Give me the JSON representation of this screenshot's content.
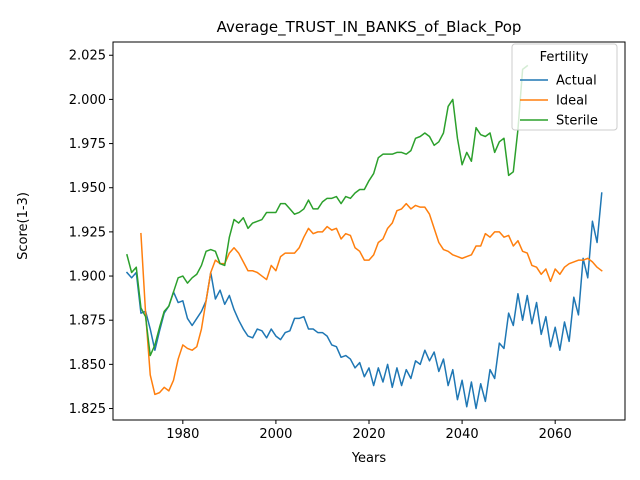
{
  "chart_data": {
    "type": "line",
    "title": "Average_TRUST_IN_BANKS_of_Black_Pop",
    "xlabel": "Years",
    "ylabel": "Score(1-3)",
    "xlim": [
      1965,
      2075
    ],
    "ylim": [
      1.8185,
      2.0325
    ],
    "xticks": [
      1980,
      2000,
      2020,
      2040,
      2060
    ],
    "xtick_labels": [
      "1980",
      "2000",
      "2020",
      "2040",
      "2060"
    ],
    "yticks": [
      1.825,
      1.85,
      1.875,
      1.9,
      1.925,
      1.95,
      1.975,
      2.0,
      2.025
    ],
    "ytick_labels": [
      "1.825",
      "1.850",
      "1.875",
      "1.900",
      "1.925",
      "1.950",
      "1.975",
      "2.000",
      "2.025"
    ],
    "grid": false,
    "legend": {
      "title": "Fertility",
      "position": "top-right"
    },
    "series": [
      {
        "name": "Actual",
        "color": "#1f77b4",
        "x": [
          1968,
          1969,
          1970,
          1971,
          1972,
          1973,
          1974,
          1975,
          1976,
          1977,
          1978,
          1979,
          1980,
          1981,
          1982,
          1983,
          1984,
          1985,
          1986,
          1987,
          1988,
          1989,
          1990,
          1991,
          1992,
          1993,
          1994,
          1995,
          1996,
          1997,
          1998,
          1999,
          2000,
          2001,
          2002,
          2003,
          2004,
          2005,
          2006,
          2007,
          2008,
          2009,
          2010,
          2011,
          2012,
          2013,
          2014,
          2015,
          2016,
          2017,
          2018,
          2019,
          2020,
          2021,
          2022,
          2023,
          2024,
          2025,
          2026,
          2027,
          2028,
          2029,
          2030,
          2031,
          2032,
          2033,
          2034,
          2035,
          2036,
          2037,
          2038,
          2039,
          2040,
          2041,
          2042,
          2043,
          2044,
          2045,
          2046,
          2047,
          2048,
          2049,
          2050,
          2051,
          2052,
          2053,
          2054,
          2055,
          2056,
          2057,
          2058,
          2059,
          2060,
          2061,
          2062,
          2063,
          2064,
          2065,
          2066,
          2067,
          2068,
          2069,
          2070
        ],
        "y": [
          1.902,
          1.899,
          1.902,
          1.879,
          1.88,
          1.87,
          1.858,
          1.869,
          1.879,
          1.883,
          1.891,
          1.885,
          1.886,
          1.876,
          1.872,
          1.876,
          1.88,
          1.886,
          1.902,
          1.887,
          1.892,
          1.884,
          1.889,
          1.881,
          1.875,
          1.87,
          1.866,
          1.865,
          1.87,
          1.869,
          1.865,
          1.87,
          1.866,
          1.864,
          1.868,
          1.869,
          1.876,
          1.876,
          1.877,
          1.87,
          1.87,
          1.868,
          1.868,
          1.866,
          1.861,
          1.86,
          1.854,
          1.855,
          1.853,
          1.848,
          1.851,
          1.843,
          1.848,
          1.838,
          1.848,
          1.84,
          1.85,
          1.837,
          1.848,
          1.838,
          1.847,
          1.842,
          1.852,
          1.85,
          1.858,
          1.852,
          1.857,
          1.846,
          1.853,
          1.838,
          1.847,
          1.83,
          1.841,
          1.826,
          1.84,
          1.825,
          1.839,
          1.829,
          1.847,
          1.842,
          1.862,
          1.859,
          1.879,
          1.872,
          1.89,
          1.875,
          1.889,
          1.873,
          1.885,
          1.867,
          1.877,
          1.86,
          1.871,
          1.858,
          1.874,
          1.863,
          1.888,
          1.878,
          1.91,
          1.899,
          1.931,
          1.919,
          1.947
        ]
      },
      {
        "name": "Ideal",
        "color": "#ff7f0e",
        "x": [
          1971,
          1972,
          1973,
          1974,
          1975,
          1976,
          1977,
          1978,
          1979,
          1980,
          1981,
          1982,
          1983,
          1984,
          1985,
          1986,
          1987,
          1988,
          1989,
          1990,
          1991,
          1992,
          1993,
          1994,
          1995,
          1996,
          1997,
          1998,
          1999,
          2000,
          2001,
          2002,
          2003,
          2004,
          2005,
          2006,
          2007,
          2008,
          2009,
          2010,
          2011,
          2012,
          2013,
          2014,
          2015,
          2016,
          2017,
          2018,
          2019,
          2020,
          2021,
          2022,
          2023,
          2024,
          2025,
          2026,
          2027,
          2028,
          2029,
          2030,
          2031,
          2032,
          2033,
          2034,
          2035,
          2036,
          2037,
          2038,
          2039,
          2040,
          2041,
          2042,
          2043,
          2044,
          2045,
          2046,
          2047,
          2048,
          2049,
          2050,
          2051,
          2052,
          2053,
          2054,
          2055,
          2056,
          2057,
          2058,
          2059,
          2060,
          2061,
          2062,
          2063,
          2064,
          2065,
          2066,
          2067,
          2068,
          2069,
          2070
        ],
        "y": [
          1.924,
          1.879,
          1.844,
          1.833,
          1.834,
          1.837,
          1.835,
          1.841,
          1.853,
          1.861,
          1.859,
          1.858,
          1.86,
          1.87,
          1.886,
          1.902,
          1.909,
          1.907,
          1.907,
          1.913,
          1.916,
          1.913,
          1.908,
          1.903,
          1.903,
          1.902,
          1.9,
          1.898,
          1.906,
          1.903,
          1.911,
          1.913,
          1.913,
          1.913,
          1.916,
          1.922,
          1.927,
          1.924,
          1.925,
          1.925,
          1.928,
          1.926,
          1.927,
          1.921,
          1.924,
          1.923,
          1.916,
          1.914,
          1.909,
          1.909,
          1.912,
          1.919,
          1.921,
          1.927,
          1.93,
          1.937,
          1.938,
          1.941,
          1.938,
          1.94,
          1.939,
          1.939,
          1.935,
          1.927,
          1.919,
          1.915,
          1.914,
          1.912,
          1.911,
          1.91,
          1.911,
          1.912,
          1.917,
          1.917,
          1.924,
          1.922,
          1.925,
          1.925,
          1.922,
          1.923,
          1.917,
          1.92,
          1.914,
          1.913,
          1.906,
          1.905,
          1.901,
          1.904,
          1.897,
          1.904,
          1.901,
          1.905,
          1.907,
          1.908,
          1.909,
          1.909,
          1.91,
          1.908,
          1.905,
          1.903
        ]
      },
      {
        "name": "Sterile",
        "color": "#2ca02c",
        "x": [
          1968,
          1969,
          1970,
          1971,
          1972,
          1973,
          1974,
          1975,
          1976,
          1977,
          1978,
          1979,
          1980,
          1981,
          1982,
          1983,
          1984,
          1985,
          1986,
          1987,
          1988,
          1989,
          1990,
          1991,
          1992,
          1993,
          1994,
          1995,
          1996,
          1997,
          1998,
          1999,
          2000,
          2001,
          2002,
          2003,
          2004,
          2005,
          2006,
          2007,
          2008,
          2009,
          2010,
          2011,
          2012,
          2013,
          2014,
          2015,
          2016,
          2017,
          2018,
          2019,
          2020,
          2021,
          2022,
          2023,
          2024,
          2025,
          2026,
          2027,
          2028,
          2029,
          2030,
          2031,
          2032,
          2033,
          2034,
          2035,
          2036,
          2037,
          2038,
          2039,
          2040,
          2041,
          2042,
          2043,
          2044,
          2045,
          2046,
          2047,
          2048,
          2049,
          2050,
          2051,
          2052,
          2053,
          2054
        ],
        "y": [
          1.912,
          1.902,
          1.905,
          1.882,
          1.877,
          1.855,
          1.861,
          1.871,
          1.88,
          1.883,
          1.891,
          1.899,
          1.9,
          1.896,
          1.899,
          1.901,
          1.906,
          1.914,
          1.915,
          1.914,
          1.907,
          1.906,
          1.922,
          1.932,
          1.93,
          1.933,
          1.927,
          1.93,
          1.931,
          1.932,
          1.936,
          1.936,
          1.936,
          1.941,
          1.941,
          1.938,
          1.935,
          1.936,
          1.938,
          1.943,
          1.938,
          1.938,
          1.942,
          1.944,
          1.944,
          1.945,
          1.941,
          1.945,
          1.944,
          1.947,
          1.949,
          1.949,
          1.954,
          1.958,
          1.967,
          1.969,
          1.969,
          1.969,
          1.97,
          1.97,
          1.969,
          1.971,
          1.978,
          1.979,
          1.981,
          1.979,
          1.974,
          1.976,
          1.981,
          1.996,
          2.0,
          1.978,
          1.963,
          1.97,
          1.965,
          1.984,
          1.98,
          1.979,
          1.981,
          1.97,
          1.976,
          1.978,
          1.957,
          1.959,
          1.983,
          2.017,
          2.019
        ]
      }
    ]
  }
}
